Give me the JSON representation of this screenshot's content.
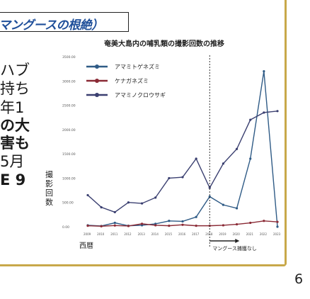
{
  "slide": {
    "title": "マングースの根絶）",
    "body_lines": [
      {
        "text": "ハブ",
        "bold": false
      },
      {
        "text": "持ち",
        "bold": false
      },
      {
        "text": "年1",
        "bold": false
      },
      {
        "text": "の大",
        "bold": true
      },
      {
        "text": "害も",
        "bold": true
      },
      {
        "text": "5月",
        "bold": false
      },
      {
        "text": "E 9",
        "bold": true
      }
    ],
    "page_number": "6"
  },
  "colors": {
    "accent_border": "#c8a84a",
    "title_color": "#1f4f9a"
  },
  "chart_data": {
    "type": "line",
    "title": "奄美大島内の哺乳類の撮影回数の推移",
    "xlabel": "西暦",
    "ylabel": "撮影回数",
    "x": [
      2009,
      2010,
      2011,
      2012,
      2013,
      2014,
      2015,
      2016,
      2017,
      2018,
      2019,
      2020,
      2021,
      2022,
      2023
    ],
    "ylim": [
      0,
      3500
    ],
    "yticks": [
      "0.00",
      "500.00",
      "1000.00",
      "1500.00",
      "2000.00",
      "2500.00",
      "3000.00",
      "3500.00"
    ],
    "series": [
      {
        "name": "アマミトゲネズミ",
        "color": "#2f5b86",
        "values": [
          30,
          15,
          80,
          20,
          30,
          60,
          120,
          110,
          200,
          620,
          450,
          380,
          1400,
          3200,
          0
        ]
      },
      {
        "name": "ケナガネズミ",
        "color": "#8a2a35",
        "values": [
          20,
          10,
          25,
          15,
          60,
          30,
          20,
          40,
          20,
          20,
          30,
          50,
          80,
          120,
          100
        ]
      },
      {
        "name": "アマミノクロウサギ",
        "color": "#3a3f70",
        "values": [
          650,
          400,
          300,
          500,
          480,
          600,
          1000,
          1020,
          1400,
          800,
          1300,
          1600,
          2200,
          2350,
          2380
        ]
      }
    ],
    "annotation": "マングース捕獲なし",
    "dashed_line_year": 2018,
    "grid": false,
    "legend": "top-left"
  }
}
